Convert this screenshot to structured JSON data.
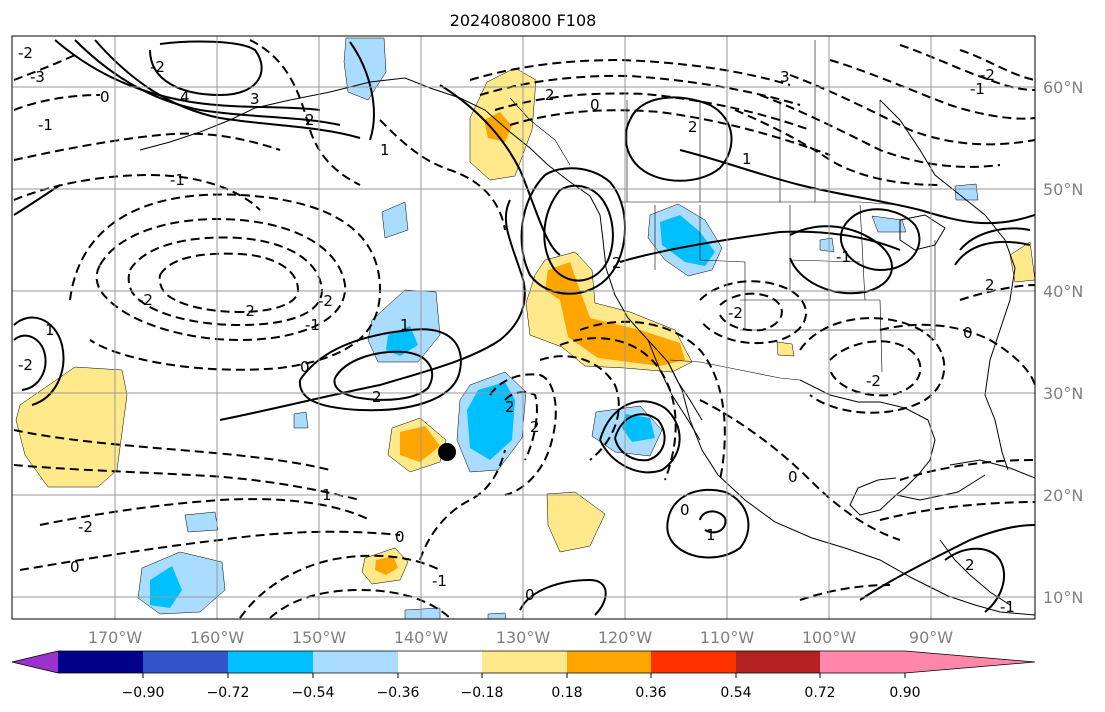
{
  "title": "2024080800 F108",
  "map": {
    "lat_labels": [
      "60°N",
      "50°N",
      "40°N",
      "30°N",
      "20°N",
      "10°N"
    ],
    "lon_labels": [
      "170°W",
      "160°W",
      "150°W",
      "140°W",
      "130°W",
      "120°W",
      "110°W",
      "100°W",
      "90°W"
    ],
    "marker": {
      "name": "black-dot",
      "lat": 24.5,
      "lon": -136.5
    },
    "contour_labels": [
      "0",
      "-1",
      "-2",
      "-3",
      "4",
      "3",
      "2",
      "1",
      "-2",
      "1",
      "-1",
      "2",
      "-2",
      "0",
      "2",
      "1",
      "-2",
      "2",
      "-1",
      "-2",
      "0",
      "-1",
      "-2",
      "0",
      "2",
      "3",
      "-2",
      "0",
      "1",
      "2",
      "-2",
      "-1",
      "0",
      "2",
      "1",
      "-2",
      "2",
      "0",
      "1",
      "0",
      "-1",
      "-2",
      "0",
      "-1",
      "2"
    ]
  },
  "colorbar": {
    "ticks": [
      "−0.90",
      "−0.72",
      "−0.54",
      "−0.36",
      "−0.18",
      "0.18",
      "0.36",
      "0.54",
      "0.72",
      "0.90"
    ],
    "colors": [
      "#9933cc",
      "#00008b",
      "#3355cc",
      "#00bfff",
      "#aadcff",
      "#ffffff",
      "#ffe98a",
      "#ffa500",
      "#ff3300",
      "#b22222",
      "#ff88aa"
    ]
  }
}
